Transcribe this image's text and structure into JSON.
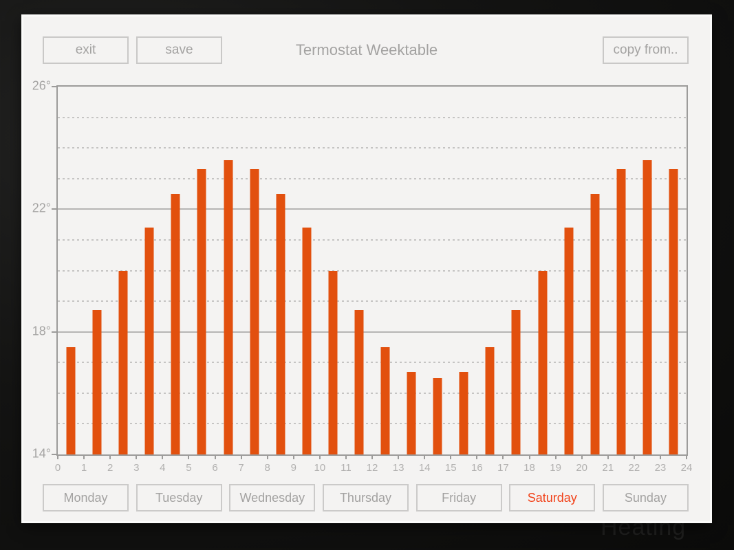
{
  "background": {
    "watermark_text": "Heating"
  },
  "header": {
    "exit_label": "exit",
    "save_label": "save",
    "title": "Termostat Weektable",
    "copy_from_label": "copy from.."
  },
  "chart_data": {
    "type": "bar",
    "title": "Termostat Weektable",
    "unit": "°",
    "hours": [
      0,
      1,
      2,
      3,
      4,
      5,
      6,
      7,
      8,
      9,
      10,
      11,
      12,
      13,
      14,
      15,
      16,
      17,
      18,
      19,
      20,
      21,
      22,
      23
    ],
    "values": [
      17.5,
      18.7,
      20.0,
      21.4,
      22.5,
      23.3,
      23.6,
      23.3,
      22.5,
      21.4,
      20.0,
      18.7,
      17.5,
      16.7,
      16.5,
      16.7,
      17.5,
      18.7,
      20.0,
      21.4,
      22.5,
      23.3,
      23.6,
      23.3
    ],
    "bars_centered_at_half_hour": true,
    "xlim": [
      0,
      24
    ],
    "ylim": [
      14,
      26
    ],
    "xticks": [
      0,
      1,
      2,
      3,
      4,
      5,
      6,
      7,
      8,
      9,
      10,
      11,
      12,
      13,
      14,
      15,
      16,
      17,
      18,
      19,
      20,
      21,
      22,
      23,
      24
    ],
    "xtick_labels": [
      "0",
      "1",
      "2",
      "3",
      "4",
      "5",
      "6",
      "7",
      "8",
      "9",
      "10",
      "11",
      "12",
      "13",
      "14",
      "15",
      "16",
      "17",
      "18",
      "19",
      "20",
      "21",
      "22",
      "23",
      "24"
    ],
    "yticks_major": [
      14,
      18,
      22,
      26
    ],
    "ytick_labels": {
      "14": "14°",
      "18": "18°",
      "22": "22°",
      "26": "26°"
    },
    "grid": "dashed line every 1 degree, solid line every 4 degrees",
    "legend": "none",
    "bar_color": "#e2500e"
  },
  "days": {
    "items": [
      {
        "label": "Monday",
        "active": false
      },
      {
        "label": "Tuesday",
        "active": false
      },
      {
        "label": "Wednesday",
        "active": false
      },
      {
        "label": "Thursday",
        "active": false
      },
      {
        "label": "Friday",
        "active": false
      },
      {
        "label": "Saturday",
        "active": true
      },
      {
        "label": "Sunday",
        "active": false
      }
    ]
  },
  "colors": {
    "bar": "#e2500e",
    "active_day_text": "#f1421a",
    "panel_background": "#f4f3f2",
    "muted_text": "#a3a2a1",
    "axis_border": "#9c9b9a",
    "outer_background": "#121211"
  }
}
